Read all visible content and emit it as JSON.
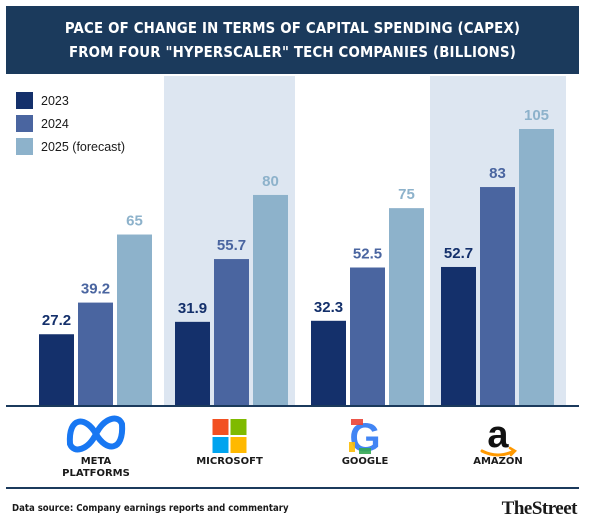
{
  "title_line1": "PACE OF CHANGE IN TERMS OF CAPITAL SPENDING (CAPEX)",
  "title_line2": "FROM FOUR \"HYPERSCALER\" TECH COMPANIES (BILLIONS)",
  "chart_data": {
    "type": "bar",
    "title": "PACE OF CHANGE IN TERMS OF CAPITAL SPENDING (CAPEX) FROM FOUR \"HYPERSCALER\" TECH COMPANIES (BILLIONS)",
    "categories": [
      "META PLATFORMS",
      "MICROSOFT",
      "GOOGLE",
      "AMAZON"
    ],
    "series": [
      {
        "name": "2023",
        "values": [
          27.2,
          31.9,
          32.3,
          52.7
        ],
        "labels": [
          "27.2",
          "31.9",
          "32.3",
          "52.7"
        ],
        "color": "#14306b",
        "label_color": "#14306b"
      },
      {
        "name": "2024",
        "values": [
          39.2,
          55.7,
          52.5,
          83
        ],
        "labels": [
          "39.2",
          "55.7",
          "52.5",
          "83"
        ],
        "color": "#4a65a0",
        "label_color": "#4a65a0"
      },
      {
        "name": "2025 (forecast)",
        "values": [
          65,
          80,
          75,
          105
        ],
        "labels": [
          "65",
          "80",
          "75",
          "105"
        ],
        "color": "#8db2cb",
        "label_color": "#8db2cb"
      }
    ],
    "ylim": [
      0,
      105
    ],
    "grid": false,
    "legend_position": "top-left",
    "shaded_columns": [
      1,
      3
    ],
    "column_shade_color": "#dde6f1"
  },
  "company_labels": [
    [
      "META",
      "PLATFORMS"
    ],
    [
      "MICROSOFT"
    ],
    [
      "GOOGLE"
    ],
    [
      "AMAZON"
    ]
  ],
  "logos": [
    "meta-logo",
    "microsoft-logo",
    "google-logo",
    "amazon-logo"
  ],
  "source": "Data source: Company earnings reports and commentary",
  "brand": "TheStreet",
  "colors": {
    "title_bg": "#1b3a5c",
    "axis": "#1b3a5c"
  }
}
